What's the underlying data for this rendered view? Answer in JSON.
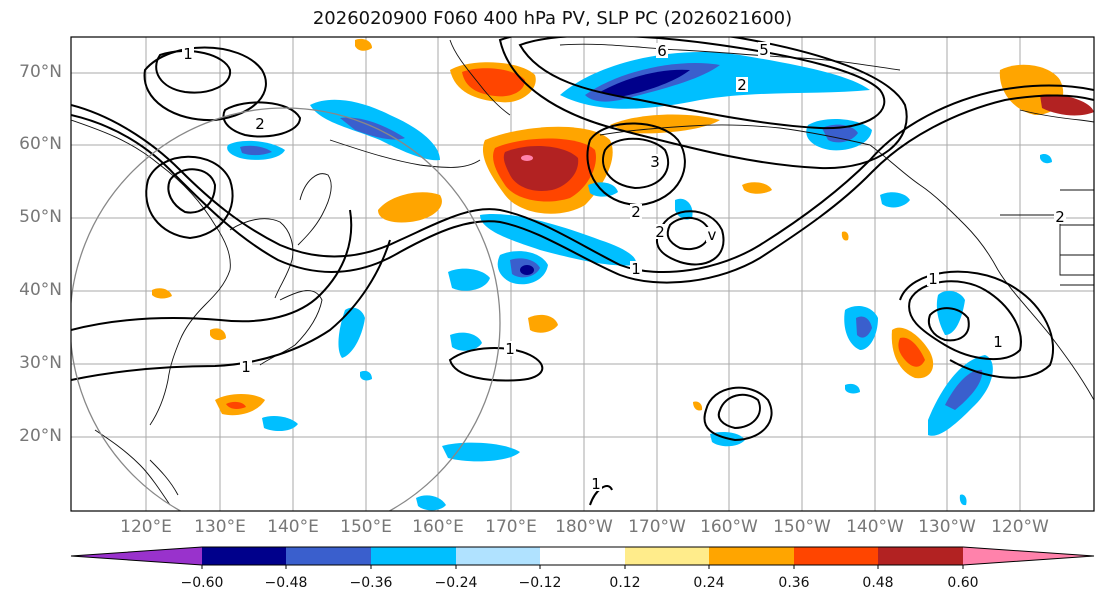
{
  "title": "2026020900 F060 400 hPa PV, SLP PC (2026021600)",
  "lat_ticks": [
    "70°N",
    "60°N",
    "50°N",
    "40°N",
    "30°N",
    "20°N"
  ],
  "lon_ticks": [
    "120°E",
    "130°E",
    "140°E",
    "150°E",
    "160°E",
    "170°E",
    "180°W",
    "170°W",
    "160°W",
    "150°W",
    "140°W",
    "130°W",
    "120°W"
  ],
  "contour_labels": [
    "1",
    "2",
    "5",
    "6",
    "2",
    "2",
    "3",
    "2",
    "v",
    "1",
    "1",
    "1",
    "1",
    "2",
    "1",
    "1"
  ],
  "colorbar": {
    "ticks": [
      "−0.60",
      "−0.48",
      "−0.36",
      "−0.24",
      "−0.12",
      "0.12",
      "0.24",
      "0.36",
      "0.48",
      "0.60"
    ],
    "colors": [
      "#9932cc",
      "#00008b",
      "#3a5fcd",
      "#00bfff",
      "#b0e2ff",
      "#ffffff",
      "#ffec8b",
      "#ffa500",
      "#ff4500",
      "#b22222",
      "#ff82ab"
    ]
  },
  "palette": {
    "neg_light": "#b0e2ff",
    "neg_mid": "#00bfff",
    "neg_strong": "#3a5fcd",
    "neg_max": "#00008b",
    "pos_light": "#ffec8b",
    "pos_mid": "#ffa500",
    "pos_strong": "#ff4500",
    "pos_max": "#b22222",
    "pos_peak": "#ff82ab"
  }
}
